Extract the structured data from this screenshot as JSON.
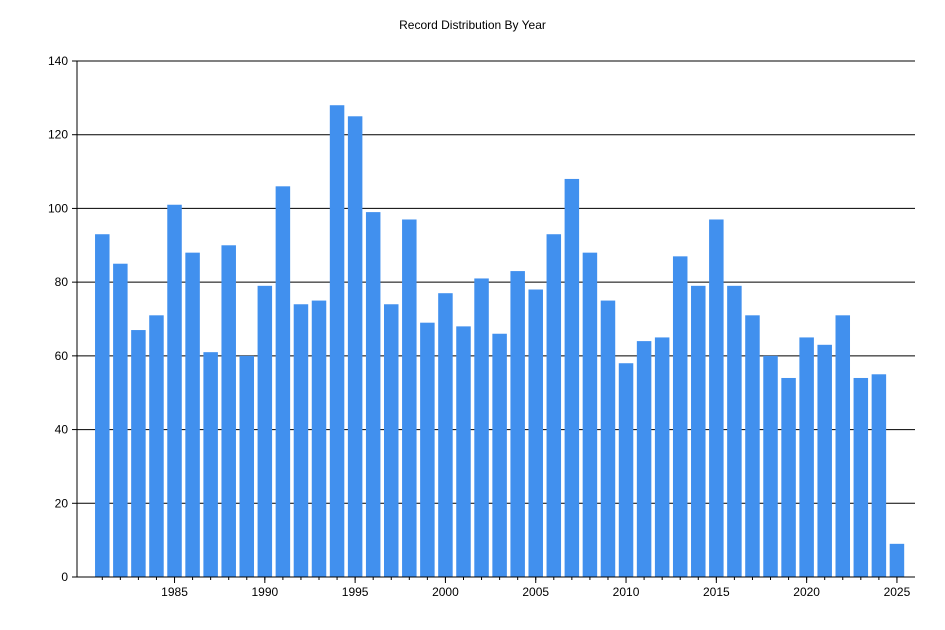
{
  "chart_data": {
    "type": "bar",
    "title": "Record Distribution By Year",
    "xlabel": "",
    "ylabel": "",
    "x": [
      1981,
      1982,
      1983,
      1984,
      1985,
      1986,
      1987,
      1988,
      1989,
      1990,
      1991,
      1992,
      1993,
      1994,
      1995,
      1996,
      1997,
      1998,
      1999,
      2000,
      2001,
      2002,
      2003,
      2004,
      2005,
      2006,
      2007,
      2008,
      2009,
      2010,
      2011,
      2012,
      2013,
      2014,
      2015,
      2016,
      2017,
      2018,
      2019,
      2020,
      2021,
      2022,
      2023,
      2024,
      2025
    ],
    "values": [
      93,
      85,
      67,
      71,
      101,
      88,
      61,
      90,
      60,
      79,
      106,
      74,
      75,
      128,
      125,
      99,
      74,
      97,
      69,
      77,
      68,
      81,
      66,
      83,
      78,
      93,
      108,
      88,
      75,
      58,
      64,
      65,
      87,
      79,
      97,
      79,
      71,
      60,
      54,
      65,
      63,
      71,
      54,
      55,
      9
    ],
    "ylim": [
      0,
      140
    ],
    "yticks": [
      0,
      20,
      40,
      60,
      80,
      100,
      120,
      140
    ],
    "xticks": [
      1985,
      1990,
      1995,
      2000,
      2005,
      2010,
      2015,
      2020,
      2025
    ],
    "grid": "horizontal",
    "legend": "none",
    "bar_color": "#4190ee"
  }
}
